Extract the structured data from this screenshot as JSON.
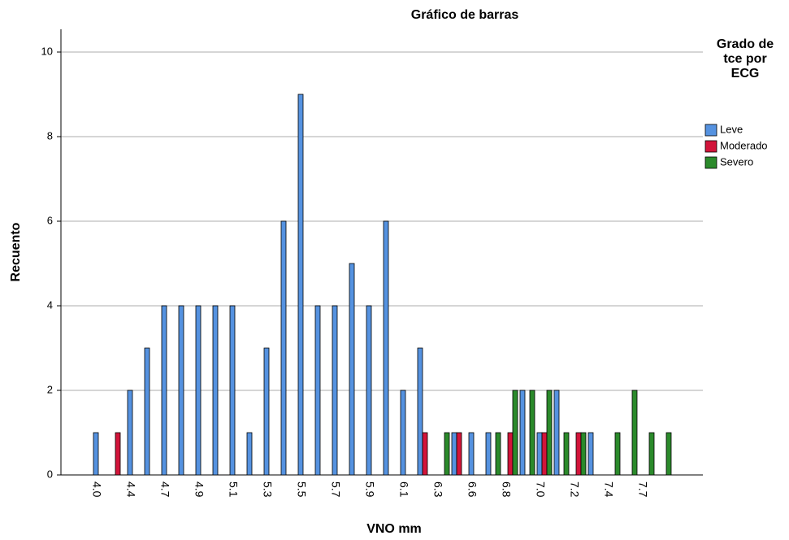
{
  "chart_data": {
    "type": "bar",
    "title": "Gráfico de barras",
    "x_label": "VNO mm",
    "y_label": "Recuento",
    "legend_title": "Grado de tce por ECG",
    "categories": [
      "4.0",
      null,
      "4.4",
      null,
      "4.7",
      null,
      "4.9",
      null,
      "5.1",
      null,
      "5.3",
      null,
      "5.5",
      null,
      "5.7",
      null,
      "5.9",
      null,
      "6.1",
      null,
      "6.3",
      null,
      "6.6",
      null,
      "6.8",
      null,
      "7.0",
      null,
      "7.2",
      null,
      "7.4",
      null,
      "7.7",
      null
    ],
    "series": [
      {
        "name": "Leve",
        "color": "#5592e0",
        "values": [
          1,
          0,
          2,
          3,
          4,
          4,
          4,
          4,
          4,
          1,
          3,
          6,
          9,
          4,
          4,
          5,
          4,
          6,
          2,
          3,
          0,
          1,
          1,
          1,
          0,
          2,
          1,
          2,
          0,
          1,
          0,
          0,
          0,
          0
        ]
      },
      {
        "name": "Moderado",
        "color": "#d2143a",
        "values": [
          0,
          1,
          0,
          0,
          0,
          0,
          0,
          0,
          0,
          0,
          0,
          0,
          0,
          0,
          0,
          0,
          0,
          0,
          0,
          1,
          0,
          1,
          0,
          0,
          1,
          0,
          1,
          0,
          1,
          0,
          0,
          0,
          0,
          0
        ]
      },
      {
        "name": "Severo",
        "color": "#2b8a2b",
        "values": [
          0,
          0,
          0,
          0,
          0,
          0,
          0,
          0,
          0,
          0,
          0,
          0,
          0,
          0,
          0,
          0,
          0,
          0,
          0,
          0,
          1,
          0,
          0,
          1,
          2,
          2,
          2,
          1,
          1,
          0,
          1,
          2,
          1,
          1
        ]
      }
    ],
    "ylim": [
      0,
      10
    ],
    "yticks": [
      0,
      2,
      4,
      6,
      8,
      10
    ],
    "grid": true
  }
}
